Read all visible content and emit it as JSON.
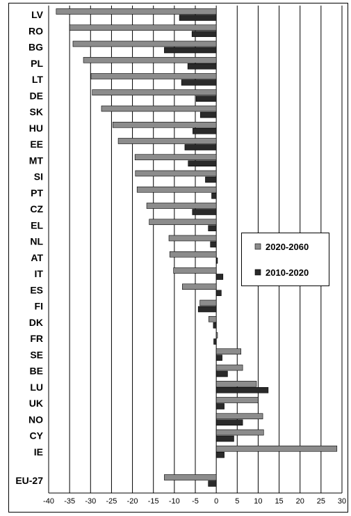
{
  "chart_data": {
    "type": "bar",
    "orientation": "horizontal",
    "categories": [
      "LV",
      "RO",
      "BG",
      "PL",
      "LT",
      "DE",
      "SK",
      "HU",
      "EE",
      "MT",
      "SI",
      "PT",
      "CZ",
      "EL",
      "NL",
      "AT",
      "IT",
      "ES",
      "FI",
      "DK",
      "FR",
      "SE",
      "BE",
      "LU",
      "UK",
      "NO",
      "CY",
      "IE",
      "EU-27"
    ],
    "series": [
      {
        "name": "2020-2060",
        "color": "#8c8c8c",
        "values": [
          -38.2,
          -35.0,
          -34.2,
          -31.7,
          -29.9,
          -29.6,
          -27.4,
          -24.7,
          -23.4,
          -19.4,
          -19.3,
          -18.9,
          -16.6,
          -16.0,
          -11.3,
          -11.1,
          -10.2,
          -8.1,
          -3.9,
          -1.8,
          0.3,
          5.9,
          6.3,
          9.6,
          10.0,
          11.1,
          11.3,
          28.8,
          -12.4
        ]
      },
      {
        "name": "2010-2020",
        "color": "#2a2a2a",
        "values": [
          -8.8,
          -5.8,
          -12.4,
          -6.8,
          -8.3,
          -4.8,
          -3.8,
          -5.6,
          -7.5,
          -6.7,
          -2.6,
          -1.1,
          -5.7,
          -1.9,
          -1.4,
          0.3,
          1.6,
          1.2,
          -4.3,
          -0.7,
          -0.6,
          1.4,
          2.7,
          12.4,
          1.9,
          6.3,
          4.2,
          1.9,
          -1.9
        ]
      }
    ],
    "xlim": [
      -40,
      30
    ],
    "xticks": [
      -40,
      -35,
      -30,
      -25,
      -20,
      -15,
      -10,
      -5,
      0,
      5,
      10,
      15,
      20,
      25,
      30
    ],
    "grid": true,
    "legend_position": "right-middle"
  }
}
